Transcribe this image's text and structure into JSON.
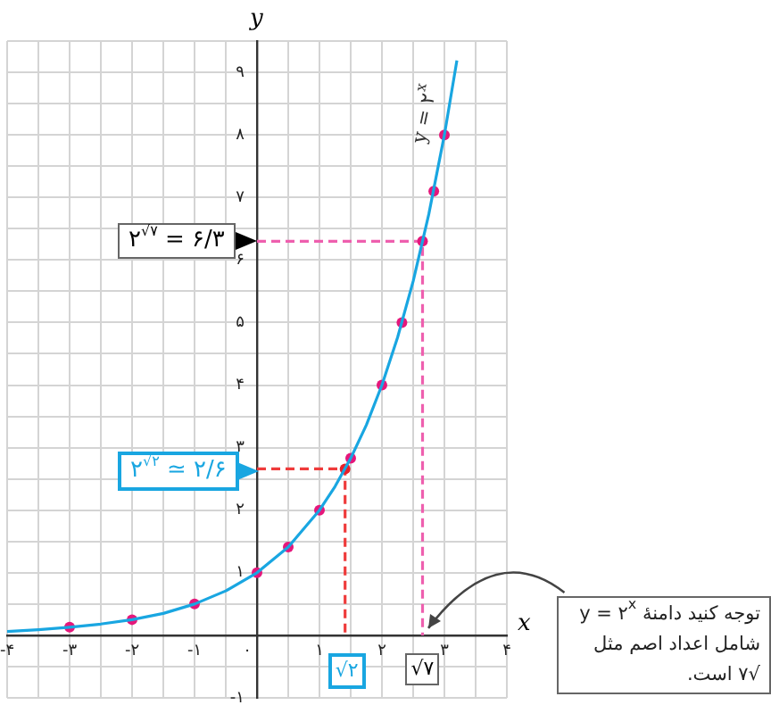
{
  "chart_data": {
    "type": "line",
    "xlabel": "x",
    "ylabel": "y",
    "xlim": [
      -4,
      4
    ],
    "ylim": [
      -1,
      9.5
    ],
    "xticks": [
      {
        "value": -4,
        "label": "-۴"
      },
      {
        "value": -3.5,
        "label": null
      },
      {
        "value": -3,
        "label": "-۳"
      },
      {
        "value": -2.5,
        "label": null
      },
      {
        "value": -2,
        "label": "-۲"
      },
      {
        "value": -1.5,
        "label": null
      },
      {
        "value": -1,
        "label": "-۱"
      },
      {
        "value": -0.5,
        "label": null
      },
      {
        "value": 0,
        "label": "۰"
      },
      {
        "value": 0.5,
        "label": null
      },
      {
        "value": 1,
        "label": "۱"
      },
      {
        "value": 1.5,
        "label": null
      },
      {
        "value": 2,
        "label": "۲"
      },
      {
        "value": 2.5,
        "label": null
      },
      {
        "value": 3,
        "label": "۳"
      },
      {
        "value": 3.5,
        "label": null
      },
      {
        "value": 4,
        "label": "۴"
      }
    ],
    "yticks": [
      {
        "value": -1,
        "label": "-۱"
      },
      {
        "value": -0.5,
        "label": null
      },
      {
        "value": 0,
        "label": null
      },
      {
        "value": 0.5,
        "label": null
      },
      {
        "value": 1,
        "label": "۱"
      },
      {
        "value": 1.5,
        "label": null
      },
      {
        "value": 2,
        "label": "۲"
      },
      {
        "value": 2.5,
        "label": null
      },
      {
        "value": 3,
        "label": "۳"
      },
      {
        "value": 3.5,
        "label": null
      },
      {
        "value": 4,
        "label": "۴"
      },
      {
        "value": 4.5,
        "label": null
      },
      {
        "value": 5,
        "label": "۵"
      },
      {
        "value": 5.5,
        "label": null
      },
      {
        "value": 6,
        "label": "۶"
      },
      {
        "value": 6.5,
        "label": null
      },
      {
        "value": 7,
        "label": "۷"
      },
      {
        "value": 7.5,
        "label": null
      },
      {
        "value": 8,
        "label": "۸"
      },
      {
        "value": 8.5,
        "label": null
      },
      {
        "value": 9,
        "label": "۹"
      },
      {
        "value": 9.5,
        "label": null
      }
    ],
    "grid": true,
    "legend": false,
    "series": [
      {
        "name": "y = ۲$^{x}$",
        "type": "line",
        "color": "#19a6e1",
        "marker": "none",
        "line_style": "solid",
        "x": [
          -4,
          -3.5,
          -3,
          -2.5,
          -2,
          -1.5,
          -1,
          -0.5,
          0,
          0.5,
          1,
          1.25,
          1.5,
          1.75,
          2,
          2.25,
          2.5,
          2.75,
          3,
          3.2
        ],
        "values": [
          0.06,
          0.09,
          0.13,
          0.18,
          0.25,
          0.35,
          0.5,
          0.71,
          1,
          1.41,
          2,
          2.38,
          2.83,
          3.36,
          4,
          4.76,
          5.66,
          6.73,
          8,
          9.19
        ]
      },
      {
        "type": "scatter",
        "color": "#e5177b",
        "marker": "circle",
        "x": [
          -3,
          -2,
          -1,
          0,
          0.5,
          1,
          1.5,
          2,
          2.32,
          2.65,
          2.83,
          3
        ],
        "values": [
          0.13,
          0.25,
          0.5,
          1,
          1.41,
          2,
          2.83,
          4,
          5,
          6.3,
          7.1,
          8
        ]
      },
      {
        "type": "scatter",
        "color": "#e8202a",
        "marker": "circle",
        "x": [
          1.41
        ],
        "values": [
          2.66
        ]
      },
      {
        "type": "line",
        "color": "#ef3b3b",
        "marker": "none",
        "line_style": "dashed",
        "x": [
          0,
          1.41,
          1.41
        ],
        "values": [
          2.66,
          2.66,
          0
        ]
      },
      {
        "type": "line",
        "color": "#ee5fae",
        "marker": "none",
        "line_style": "dashed",
        "x": [
          0,
          2.65,
          2.65
        ],
        "values": [
          6.3,
          6.3,
          0
        ]
      }
    ],
    "annotations": [
      {
        "text": "۲$^{√۲}$ ≃ ۲/۶",
        "x": 0,
        "y": 2.66
      },
      {
        "text": "۲$^{√۷}$ = ۶/۳",
        "x": 0,
        "y": 6.3
      },
      {
        "text": "√۲",
        "x": 1.41,
        "y": 0
      },
      {
        "text": "√۷",
        "x": 2.65,
        "y": 0
      },
      "توجه کنید دامنهٔ y = ۲$^{x}$ شامل اعداد اصم مثل √۷ است."
    ]
  }
}
